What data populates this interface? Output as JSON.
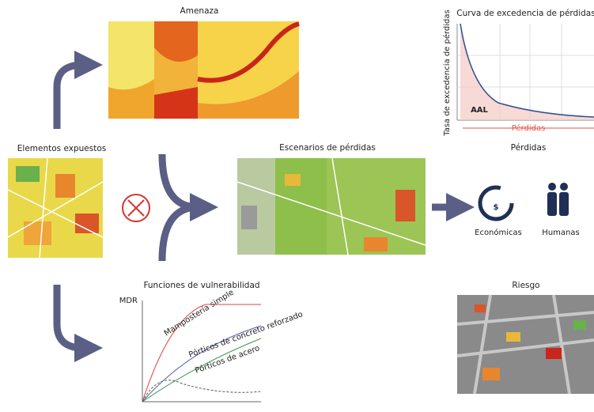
{
  "hazard": {
    "title": "Amenaza"
  },
  "loss_curve": {
    "title": "Curva de excedencia de pérdidas",
    "y_label": "Tasa de excedencia de pérdidas",
    "area_label": "AAL",
    "x_label": "Pérdidas"
  },
  "exposure": {
    "title": "Elementos expuestos"
  },
  "scenarios": {
    "title": "Escenarios de pérdidas"
  },
  "losses": {
    "title": "Pérdidas",
    "items": [
      "Económicas",
      "Humanas"
    ]
  },
  "vulnerability": {
    "title": "Funciones de vulnerabilidad",
    "y_label": "MDR",
    "curves": [
      "Mampostería simple",
      "Pórticos de concreto reforzado",
      "Pórticos de acero"
    ]
  },
  "risk": {
    "title": "Riesgo"
  }
}
